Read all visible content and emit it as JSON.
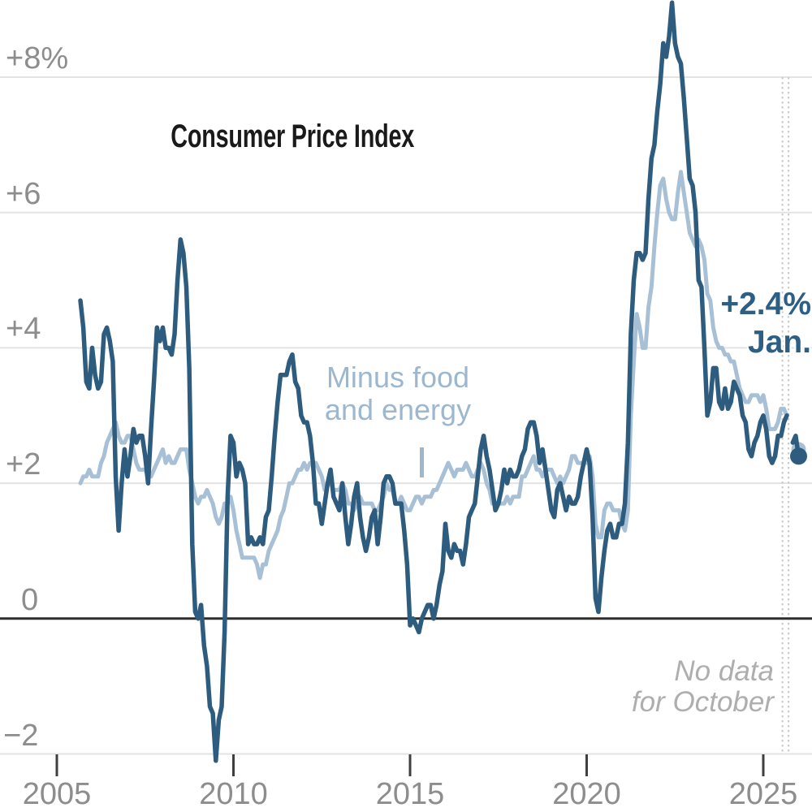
{
  "page": {
    "title": "Consumer Price Index"
  },
  "annotations": {
    "latest": {
      "value": "+2.4%",
      "period": "Jan."
    },
    "core_line_label": {
      "line1": "Minus food",
      "line2": "and energy"
    },
    "missing_data_note": {
      "line1": "No data",
      "line2": "for October"
    }
  },
  "colors": {
    "background": "#ffffff",
    "title_text": "#1a1a1a",
    "cpi_line": "#2d5c7e",
    "core_line": "#a8c0d5",
    "latest_annotation": "#2d5f85",
    "core_label_text": "#9cb7ce",
    "note_text": "#aeaeae",
    "axis_label": "#8d8d8d",
    "gridline": "#e3e3e3",
    "zero_line": "#2d2d2d",
    "tick_mark": "#3f3f3f",
    "gap_marker": "#c9c9c9"
  },
  "chart_data": {
    "type": "line",
    "title": "Consumer Price Index",
    "frequency": "monthly",
    "first_year": 2005,
    "first_month": 9,
    "last_period": "2026-01",
    "missing_periods": [
      "2025-10"
    ],
    "grid": true,
    "ylim": [
      -2.9,
      9.2
    ],
    "yticks": [
      {
        "value": 8,
        "label": "+8%"
      },
      {
        "value": 6,
        "label": "+6"
      },
      {
        "value": 4,
        "label": "+4"
      },
      {
        "value": 2,
        "label": "+2"
      },
      {
        "value": 0,
        "label": "0"
      },
      {
        "value": -2,
        "label": "−2"
      }
    ],
    "xticks": [
      {
        "year": 2005,
        "label": "2005"
      },
      {
        "year": 2010,
        "label": "2010"
      },
      {
        "year": 2015,
        "label": "2015"
      },
      {
        "year": 2020,
        "label": "2020"
      },
      {
        "year": 2025,
        "label": "2025"
      }
    ],
    "series": [
      {
        "name": "Consumer Price Index",
        "role": "headline",
        "color": "#2d5c7e",
        "end_label": "+2.4% Jan.",
        "values": [
          [
            4.7,
            4.3,
            3.5,
            3.4
          ],
          [
            4.0,
            3.6,
            3.4,
            3.5,
            4.2,
            4.3,
            4.1,
            3.8,
            2.1,
            1.3,
            2.0,
            2.5
          ],
          [
            2.1,
            2.4,
            2.8,
            2.6,
            2.7,
            2.7,
            2.4,
            2.0,
            2.8,
            3.5,
            4.3,
            4.1
          ],
          [
            4.3,
            4.0,
            4.0,
            3.9,
            4.2,
            5.0,
            5.6,
            5.4,
            4.9,
            3.7,
            1.1,
            0.1
          ],
          [
            0.0,
            0.2,
            -0.4,
            -0.7,
            -1.3,
            -1.4,
            -2.1,
            -1.5,
            -1.3,
            -0.2,
            1.8,
            2.7
          ],
          [
            2.6,
            2.1,
            2.3,
            2.2,
            2.0,
            1.1,
            1.2,
            1.1,
            1.1,
            1.2,
            1.1,
            1.5
          ],
          [
            1.6,
            2.1,
            2.7,
            3.2,
            3.6,
            3.6,
            3.6,
            3.8,
            3.9,
            3.5,
            3.4,
            3.0
          ],
          [
            2.9,
            2.9,
            2.7,
            2.3,
            1.7,
            1.7,
            1.4,
            1.7,
            2.0,
            2.2,
            1.8,
            1.7
          ],
          [
            1.6,
            2.0,
            1.5,
            1.1,
            1.4,
            1.8,
            2.0,
            1.5,
            1.2,
            1.0,
            1.2,
            1.5
          ],
          [
            1.6,
            1.1,
            1.5,
            2.0,
            2.1,
            2.1,
            2.0,
            1.7,
            1.7,
            1.7,
            1.3,
            0.8
          ],
          [
            -0.1,
            0.0,
            -0.1,
            -0.2,
            0.0,
            0.1,
            0.2,
            0.2,
            0.0,
            0.2,
            0.5,
            0.7
          ],
          [
            1.4,
            1.0,
            0.9,
            1.1,
            1.0,
            1.0,
            0.8,
            1.1,
            1.5,
            1.6,
            1.7,
            2.1
          ],
          [
            2.5,
            2.7,
            2.4,
            2.2,
            1.9,
            1.6,
            1.7,
            1.9,
            2.2,
            2.0,
            2.2,
            2.1
          ],
          [
            2.1,
            2.2,
            2.4,
            2.5,
            2.8,
            2.9,
            2.9,
            2.7,
            2.3,
            2.5,
            2.2,
            1.9
          ],
          [
            1.6,
            1.5,
            1.9,
            2.0,
            1.8,
            1.6,
            1.8,
            1.7,
            1.7,
            1.8,
            2.1,
            2.3
          ],
          [
            2.5,
            2.3,
            1.5,
            0.3,
            0.1,
            0.6,
            1.0,
            1.3,
            1.4,
            1.2,
            1.2,
            1.4
          ],
          [
            1.4,
            1.7,
            2.6,
            4.2,
            5.0,
            5.4,
            5.4,
            5.3,
            5.4,
            6.2,
            6.8,
            7.0
          ],
          [
            7.5,
            7.9,
            8.5,
            8.3,
            8.6,
            9.1,
            8.5,
            8.3,
            8.2,
            7.7,
            7.1,
            6.5
          ],
          [
            6.4,
            6.0,
            5.0,
            4.9,
            4.0,
            3.0,
            3.2,
            3.7,
            3.7,
            3.2,
            3.1,
            3.4
          ],
          [
            3.1,
            3.2,
            3.5,
            3.4,
            3.3,
            3.0,
            2.9,
            2.5,
            2.4,
            2.6,
            2.7,
            2.9
          ],
          [
            3.0,
            2.8,
            2.4,
            2.3,
            2.4,
            2.7,
            2.7,
            2.9,
            3.0,
            null,
            2.6,
            2.7
          ],
          [
            2.4
          ]
        ]
      },
      {
        "name": "Minus food and energy",
        "role": "core",
        "color": "#a8c0d5",
        "values": [
          [
            2.0,
            2.1,
            2.1,
            2.2
          ],
          [
            2.1,
            2.1,
            2.1,
            2.3,
            2.4,
            2.6,
            2.7,
            2.8,
            2.9,
            2.7,
            2.6,
            2.6
          ],
          [
            2.7,
            2.7,
            2.5,
            2.3,
            2.2,
            2.2,
            2.2,
            2.1,
            2.1,
            2.2,
            2.3,
            2.4
          ],
          [
            2.5,
            2.3,
            2.4,
            2.3,
            2.3,
            2.4,
            2.5,
            2.5,
            2.5,
            2.2,
            2.0,
            1.8
          ],
          [
            1.7,
            1.8,
            1.8,
            1.9,
            1.8,
            1.7,
            1.5,
            1.4,
            1.5,
            1.7,
            1.7,
            1.8
          ],
          [
            1.6,
            1.3,
            1.1,
            0.9,
            0.9,
            0.9,
            0.9,
            0.9,
            0.8,
            0.6,
            0.8,
            0.8
          ],
          [
            1.0,
            1.1,
            1.2,
            1.3,
            1.5,
            1.6,
            1.8,
            2.0,
            2.0,
            2.1,
            2.2,
            2.2
          ],
          [
            2.3,
            2.2,
            2.3,
            2.3,
            2.3,
            2.2,
            2.1,
            1.9,
            2.0,
            2.0,
            1.9,
            1.9
          ],
          [
            1.9,
            2.0,
            1.9,
            1.7,
            1.7,
            1.6,
            1.7,
            1.8,
            1.7,
            1.7,
            1.7,
            1.7
          ],
          [
            1.6,
            1.6,
            1.7,
            1.8,
            2.0,
            1.9,
            1.9,
            1.7,
            1.7,
            1.8,
            1.7,
            1.6
          ],
          [
            1.6,
            1.7,
            1.8,
            1.8,
            1.7,
            1.8,
            1.8,
            1.8,
            1.9,
            1.9,
            2.0,
            2.1
          ],
          [
            2.2,
            2.3,
            2.2,
            2.1,
            2.2,
            2.2,
            2.2,
            2.3,
            2.2,
            2.1,
            2.1,
            2.2
          ],
          [
            2.3,
            2.2,
            2.0,
            1.9,
            1.7,
            1.7,
            1.7,
            1.7,
            1.7,
            1.8,
            1.7,
            1.8
          ],
          [
            1.8,
            1.8,
            2.1,
            2.1,
            2.2,
            2.3,
            2.4,
            2.2,
            2.2,
            2.1,
            2.2,
            2.2
          ],
          [
            2.2,
            2.1,
            2.0,
            2.1,
            2.0,
            2.1,
            2.2,
            2.4,
            2.4,
            2.3,
            2.3,
            2.3
          ],
          [
            2.3,
            2.4,
            2.1,
            1.4,
            1.2,
            1.2,
            1.6,
            1.7,
            1.7,
            1.6,
            1.6,
            1.6
          ],
          [
            1.4,
            1.3,
            1.6,
            3.0,
            3.8,
            4.5,
            4.3,
            4.0,
            4.0,
            4.6,
            4.9,
            5.5
          ],
          [
            6.0,
            6.4,
            6.5,
            6.2,
            6.0,
            5.9,
            5.9,
            6.3,
            6.6,
            6.3,
            6.0,
            5.7
          ],
          [
            5.6,
            5.5,
            5.6,
            5.5,
            5.3,
            4.8,
            4.7,
            4.3,
            4.1,
            4.0,
            4.0,
            3.9
          ],
          [
            3.9,
            3.8,
            3.8,
            3.6,
            3.4,
            3.3,
            3.2,
            3.2,
            3.3,
            3.3,
            3.3,
            3.2
          ],
          [
            3.3,
            3.1,
            2.8,
            2.8,
            2.8,
            2.9,
            3.1,
            3.1,
            3.0,
            null,
            2.6,
            2.6
          ],
          [
            2.5
          ]
        ]
      }
    ]
  }
}
